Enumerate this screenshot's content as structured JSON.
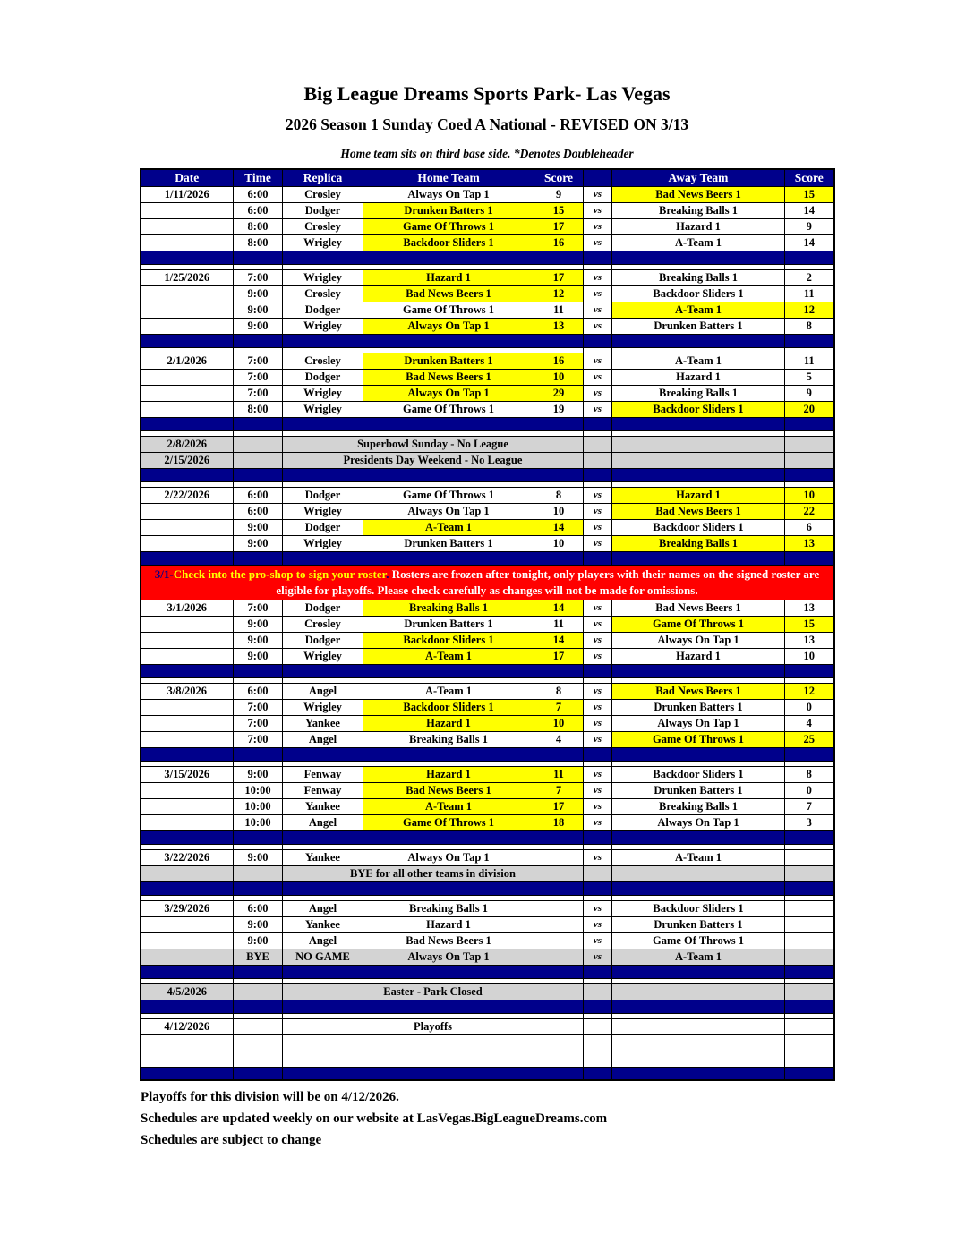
{
  "title": "Big League Dreams Sports Park- Las Vegas",
  "subtitle": "2026 Season 1 Sunday Coed A National - REVISED ON 3/13",
  "note": "Home team sits on third base side.  *Denotes Doubleheader",
  "colors": {
    "navy": "#00008B",
    "highlight_yellow": "#FFFF00",
    "no_league_gray": "#D3D3D3",
    "notice_red": "#FF0000"
  },
  "table": {
    "headers": [
      "Date",
      "Time",
      "Replica",
      "Home Team",
      "Score",
      "",
      "Away Team",
      "Score"
    ],
    "vs_label": "vs",
    "rows": [
      {
        "t": "g",
        "d": "1/11/2026",
        "tm": "6:00",
        "r": "Crosley",
        "h": "Always On Tap 1",
        "hs": "9",
        "a": "Bad News Beers 1",
        "as": "15",
        "w": "a"
      },
      {
        "t": "g",
        "d": "",
        "tm": "6:00",
        "r": "Dodger",
        "h": "Drunken Batters 1",
        "hs": "15",
        "a": "Breaking Balls 1",
        "as": "14",
        "w": "h"
      },
      {
        "t": "g",
        "d": "",
        "tm": "8:00",
        "r": "Crosley",
        "h": "Game Of Throws 1",
        "hs": "17",
        "a": "Hazard 1",
        "as": "9",
        "w": "h"
      },
      {
        "t": "g",
        "d": "",
        "tm": "8:00",
        "r": "Wrigley",
        "h": "Backdoor Sliders 1",
        "hs": "16",
        "a": "A-Team 1",
        "as": "14",
        "w": "h"
      },
      {
        "t": "sep"
      },
      {
        "t": "spc"
      },
      {
        "t": "g",
        "d": "1/25/2026",
        "tm": "7:00",
        "r": "Wrigley",
        "h": "Hazard 1",
        "hs": "17",
        "a": "Breaking Balls 1",
        "as": "2",
        "w": "h"
      },
      {
        "t": "g",
        "d": "",
        "tm": "9:00",
        "r": "Crosley",
        "h": "Bad News Beers 1",
        "hs": "12",
        "a": "Backdoor Sliders 1",
        "as": "11",
        "w": "h"
      },
      {
        "t": "g",
        "d": "",
        "tm": "9:00",
        "r": "Dodger",
        "h": "Game Of Throws 1",
        "hs": "11",
        "a": "A-Team 1",
        "as": "12",
        "w": "a"
      },
      {
        "t": "g",
        "d": "",
        "tm": "9:00",
        "r": "Wrigley",
        "h": "Always On Tap 1",
        "hs": "13",
        "a": "Drunken Batters 1",
        "as": "8",
        "w": "h"
      },
      {
        "t": "sep"
      },
      {
        "t": "spc"
      },
      {
        "t": "g",
        "d": "2/1/2026",
        "tm": "7:00",
        "r": "Crosley",
        "h": "Drunken Batters 1",
        "hs": "16",
        "a": "A-Team 1",
        "as": "11",
        "w": "h"
      },
      {
        "t": "g",
        "d": "",
        "tm": "7:00",
        "r": "Dodger",
        "h": "Bad News Beers 1",
        "hs": "10",
        "a": "Hazard 1",
        "as": "5",
        "w": "h"
      },
      {
        "t": "g",
        "d": "",
        "tm": "7:00",
        "r": "Wrigley",
        "h": "Always On Tap 1",
        "hs": "29",
        "a": "Breaking Balls 1",
        "as": "9",
        "w": "h"
      },
      {
        "t": "g",
        "d": "",
        "tm": "8:00",
        "r": "Wrigley",
        "h": "Game Of Throws 1",
        "hs": "19",
        "a": "Backdoor Sliders 1",
        "as": "20",
        "w": "a"
      },
      {
        "t": "sep"
      },
      {
        "t": "spc"
      },
      {
        "t": "m",
        "d": "2/8/2026",
        "x": "Superbowl Sunday - No League"
      },
      {
        "t": "m",
        "d": "2/15/2026",
        "x": "Presidents Day Weekend - No League"
      },
      {
        "t": "sep"
      },
      {
        "t": "spc"
      },
      {
        "t": "g",
        "d": "2/22/2026",
        "tm": "6:00",
        "r": "Dodger",
        "h": "Game Of Throws 1",
        "hs": "8",
        "a": "Hazard 1",
        "as": "10",
        "w": "a"
      },
      {
        "t": "g",
        "d": "",
        "tm": "6:00",
        "r": "Wrigley",
        "h": "Always On Tap 1",
        "hs": "10",
        "a": "Bad News Beers 1",
        "as": "22",
        "w": "a"
      },
      {
        "t": "g",
        "d": "",
        "tm": "9:00",
        "r": "Dodger",
        "h": "A-Team 1",
        "hs": "14",
        "a": "Backdoor Sliders 1",
        "as": "6",
        "w": "h"
      },
      {
        "t": "g",
        "d": "",
        "tm": "9:00",
        "r": "Wrigley",
        "h": "Drunken Batters 1",
        "hs": "10",
        "a": "Breaking Balls 1",
        "as": "13",
        "w": "a"
      },
      {
        "t": "sep"
      },
      {
        "t": "n"
      },
      {
        "t": "g",
        "d": "3/1/2026",
        "tm": "7:00",
        "r": "Dodger",
        "h": "Breaking Balls 1",
        "hs": "14",
        "a": "Bad News Beers 1",
        "as": "13",
        "w": "h"
      },
      {
        "t": "g",
        "d": "",
        "tm": "9:00",
        "r": "Crosley",
        "h": "Drunken Batters 1",
        "hs": "11",
        "a": "Game Of Throws 1",
        "as": "15",
        "w": "a"
      },
      {
        "t": "g",
        "d": "",
        "tm": "9:00",
        "r": "Dodger",
        "h": "Backdoor Sliders 1",
        "hs": "14",
        "a": "Always On Tap 1",
        "as": "13",
        "w": "h"
      },
      {
        "t": "g",
        "d": "",
        "tm": "9:00",
        "r": "Wrigley",
        "h": "A-Team 1",
        "hs": "17",
        "a": "Hazard 1",
        "as": "10",
        "w": "h"
      },
      {
        "t": "sep"
      },
      {
        "t": "spc"
      },
      {
        "t": "g",
        "d": "3/8/2026",
        "tm": "6:00",
        "r": "Angel",
        "h": "A-Team 1",
        "hs": "8",
        "a": "Bad News Beers 1",
        "as": "12",
        "w": "a"
      },
      {
        "t": "g",
        "d": "",
        "tm": "7:00",
        "r": "Wrigley",
        "h": "Backdoor Sliders 1",
        "hs": "7",
        "a": "Drunken Batters 1",
        "as": "0",
        "w": "h"
      },
      {
        "t": "g",
        "d": "",
        "tm": "7:00",
        "r": "Yankee",
        "h": "Hazard 1",
        "hs": "10",
        "a": "Always On Tap 1",
        "as": "4",
        "w": "h"
      },
      {
        "t": "g",
        "d": "",
        "tm": "7:00",
        "r": "Angel",
        "h": "Breaking Balls 1",
        "hs": "4",
        "a": "Game Of Throws 1",
        "as": "25",
        "w": "a"
      },
      {
        "t": "sep"
      },
      {
        "t": "spc"
      },
      {
        "t": "g",
        "d": "3/15/2026",
        "tm": "9:00",
        "r": "Fenway",
        "h": "Hazard 1",
        "hs": "11",
        "a": "Backdoor Sliders 1",
        "as": "8",
        "w": "h"
      },
      {
        "t": "g",
        "d": "",
        "tm": "10:00",
        "r": "Fenway",
        "h": "Bad News Beers 1",
        "hs": "7",
        "a": "Drunken Batters 1",
        "as": "0",
        "w": "h"
      },
      {
        "t": "g",
        "d": "",
        "tm": "10:00",
        "r": "Yankee",
        "h": "A-Team 1",
        "hs": "17",
        "a": "Breaking Balls 1",
        "as": "7",
        "w": "h"
      },
      {
        "t": "g",
        "d": "",
        "tm": "10:00",
        "r": "Angel",
        "h": "Game Of Throws 1",
        "hs": "18",
        "a": "Always On Tap 1",
        "as": "3",
        "w": "h"
      },
      {
        "t": "sep"
      },
      {
        "t": "spc"
      },
      {
        "t": "g",
        "d": "3/22/2026",
        "tm": "9:00",
        "r": "Yankee",
        "h": "Always On Tap 1",
        "hs": "",
        "a": "A-Team 1",
        "as": "",
        "w": ""
      },
      {
        "t": "m",
        "d": "",
        "x": "BYE for all other teams in division"
      },
      {
        "t": "sep"
      },
      {
        "t": "spc"
      },
      {
        "t": "g",
        "d": "3/29/2026",
        "tm": "6:00",
        "r": "Angel",
        "h": "Breaking Balls 1",
        "hs": "",
        "a": "Backdoor Sliders 1",
        "as": "",
        "w": ""
      },
      {
        "t": "g",
        "d": "",
        "tm": "9:00",
        "r": "Yankee",
        "h": "Hazard 1",
        "hs": "",
        "a": "Drunken Batters 1",
        "as": "",
        "w": ""
      },
      {
        "t": "g",
        "d": "",
        "tm": "9:00",
        "r": "Angel",
        "h": "Bad News Beers 1",
        "hs": "",
        "a": "Game Of Throws 1",
        "as": "",
        "w": ""
      },
      {
        "t": "byeg",
        "d": "",
        "tm": "BYE",
        "r": "NO GAME",
        "h": "Always On Tap 1",
        "hs": "",
        "a": "A-Team 1",
        "as": ""
      },
      {
        "t": "sep"
      },
      {
        "t": "spc"
      },
      {
        "t": "m",
        "d": "4/5/2026",
        "x": "Easter - Park Closed"
      },
      {
        "t": "sep"
      },
      {
        "t": "spc"
      },
      {
        "t": "mw",
        "d": "4/12/2026",
        "x": "Playoffs"
      },
      {
        "t": "e"
      },
      {
        "t": "e"
      },
      {
        "t": "sep"
      }
    ]
  },
  "notice": {
    "prefix": "3/1-",
    "highlight": "Check into the pro-shop to sign your roster",
    "period": ".",
    "rest": " Rosters are frozen after tonight, only players with their names on the signed roster are eligible for playoffs. Please check carefully as changes will not be made for omissions."
  },
  "footer": [
    "Playoffs for this division will be on 4/12/2026.",
    "Schedules are updated weekly on our website at LasVegas.BigLeagueDreams.com",
    "Schedules are subject to change"
  ]
}
